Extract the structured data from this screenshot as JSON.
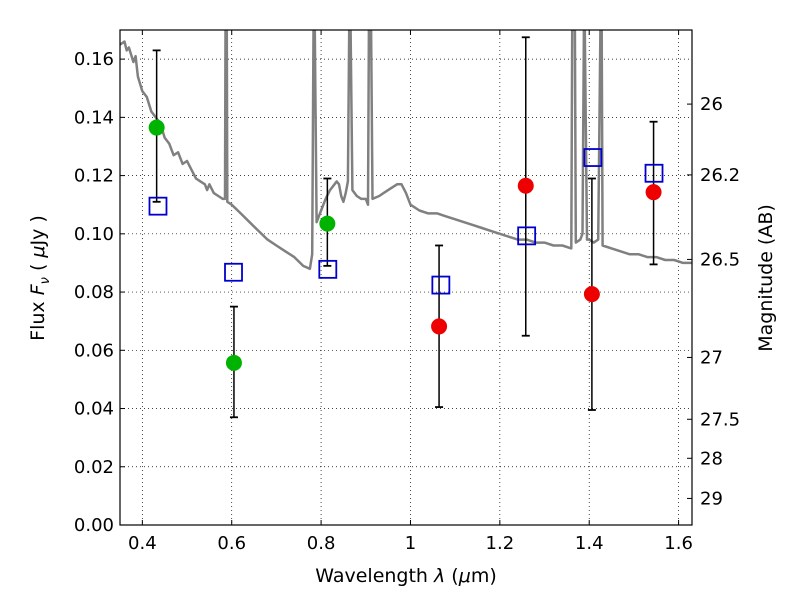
{
  "chart_data": {
    "type": "scatter",
    "xlabel_prefix": "Wavelength ",
    "xlabel_var": "λ",
    "xlabel_unit_open": " (",
    "xlabel_unit_mu": "μ",
    "xlabel_unit_close": "m)",
    "ylabel_prefix": "Flux ",
    "ylabel_var_main": "F",
    "ylabel_var_sub": "ν",
    "ylabel_unit_open": " ( ",
    "ylabel_unit_mu": "μ",
    "ylabel_unit_close": "Jy )",
    "y2label": "Magnitude (AB)",
    "xlim": [
      0.35,
      1.63
    ],
    "ylim": [
      0.0,
      0.17
    ],
    "grid": true,
    "grid_style": "dotted",
    "x_ticks": [
      {
        "value": 0.4,
        "label": "0.4"
      },
      {
        "value": 0.6,
        "label": "0.6"
      },
      {
        "value": 0.8,
        "label": "0.8"
      },
      {
        "value": 1.0,
        "label": "1"
      },
      {
        "value": 1.2,
        "label": "1.2"
      },
      {
        "value": 1.4,
        "label": "1.4"
      },
      {
        "value": 1.6,
        "label": "1.6"
      }
    ],
    "y_ticks": [
      {
        "value": 0.0,
        "label": "0.00"
      },
      {
        "value": 0.02,
        "label": "0.02"
      },
      {
        "value": 0.04,
        "label": "0.04"
      },
      {
        "value": 0.06,
        "label": "0.06"
      },
      {
        "value": 0.08,
        "label": "0.08"
      },
      {
        "value": 0.1,
        "label": "0.10"
      },
      {
        "value": 0.12,
        "label": "0.12"
      },
      {
        "value": 0.14,
        "label": "0.14"
      },
      {
        "value": 0.16,
        "label": "0.16"
      }
    ],
    "mag_ticks": [
      {
        "label": "26",
        "mag": 26.0
      },
      {
        "label": "26.2",
        "mag": 26.2
      },
      {
        "label": "26.5",
        "mag": 26.5
      },
      {
        "label": "27",
        "mag": 27.0
      },
      {
        "label": "27.5",
        "mag": 27.5
      },
      {
        "label": "28",
        "mag": 28.0
      },
      {
        "label": "29",
        "mag": 29.0
      }
    ],
    "colors": {
      "green": "#00b300",
      "red": "#ee0000",
      "square": "#0000cc",
      "sed": "#808080",
      "errorbar": "#000000"
    },
    "observed_green": [
      {
        "x": 0.432,
        "y": 0.1365,
        "ylo": 0.111,
        "yhi": 0.163
      },
      {
        "x": 0.605,
        "y": 0.0557,
        "ylo": 0.037,
        "yhi": 0.075
      },
      {
        "x": 0.814,
        "y": 0.1035,
        "ylo": 0.089,
        "yhi": 0.119
      }
    ],
    "observed_red": [
      {
        "x": 1.064,
        "y": 0.0682,
        "ylo": 0.0405,
        "yhi": 0.096
      },
      {
        "x": 1.258,
        "y": 0.1165,
        "ylo": 0.065,
        "yhi": 0.1675
      },
      {
        "x": 1.406,
        "y": 0.0793,
        "ylo": 0.0395,
        "yhi": 0.119
      },
      {
        "x": 1.544,
        "y": 0.1143,
        "ylo": 0.0895,
        "yhi": 0.1385
      }
    ],
    "model_points": [
      {
        "x": 0.435,
        "y": 0.1095
      },
      {
        "x": 0.604,
        "y": 0.0868
      },
      {
        "x": 0.815,
        "y": 0.0878
      },
      {
        "x": 1.068,
        "y": 0.0824
      },
      {
        "x": 1.26,
        "y": 0.0993
      },
      {
        "x": 1.408,
        "y": 0.1262
      },
      {
        "x": 1.545,
        "y": 0.1208
      }
    ],
    "sed_curve": [
      [
        0.35,
        0.165
      ],
      [
        0.36,
        0.166
      ],
      [
        0.365,
        0.163
      ],
      [
        0.37,
        0.164
      ],
      [
        0.38,
        0.159
      ],
      [
        0.385,
        0.161
      ],
      [
        0.39,
        0.154
      ],
      [
        0.4,
        0.149
      ],
      [
        0.41,
        0.147
      ],
      [
        0.42,
        0.142
      ],
      [
        0.43,
        0.14
      ],
      [
        0.44,
        0.138
      ],
      [
        0.45,
        0.133
      ],
      [
        0.46,
        0.131
      ],
      [
        0.47,
        0.127
      ],
      [
        0.48,
        0.128
      ],
      [
        0.49,
        0.124
      ],
      [
        0.5,
        0.125
      ],
      [
        0.51,
        0.122
      ],
      [
        0.52,
        0.119
      ],
      [
        0.53,
        0.118
      ],
      [
        0.54,
        0.117
      ],
      [
        0.545,
        0.115
      ],
      [
        0.55,
        0.117
      ],
      [
        0.56,
        0.114
      ],
      [
        0.57,
        0.113
      ],
      [
        0.58,
        0.112
      ],
      [
        0.585,
        0.112
      ],
      [
        0.586,
        0.17
      ],
      [
        0.589,
        0.17
      ],
      [
        0.59,
        0.111
      ],
      [
        0.6,
        0.11
      ],
      [
        0.62,
        0.107
      ],
      [
        0.64,
        0.104
      ],
      [
        0.66,
        0.101
      ],
      [
        0.68,
        0.098
      ],
      [
        0.7,
        0.096
      ],
      [
        0.72,
        0.094
      ],
      [
        0.74,
        0.092
      ],
      [
        0.76,
        0.089
      ],
      [
        0.775,
        0.088
      ],
      [
        0.78,
        0.093
      ],
      [
        0.783,
        0.17
      ],
      [
        0.786,
        0.17
      ],
      [
        0.79,
        0.104
      ],
      [
        0.8,
        0.108
      ],
      [
        0.81,
        0.112
      ],
      [
        0.82,
        0.115
      ],
      [
        0.83,
        0.117
      ],
      [
        0.835,
        0.118
      ],
      [
        0.84,
        0.117
      ],
      [
        0.845,
        0.113
      ],
      [
        0.85,
        0.111
      ],
      [
        0.855,
        0.114
      ],
      [
        0.86,
        0.118
      ],
      [
        0.863,
        0.17
      ],
      [
        0.866,
        0.17
      ],
      [
        0.87,
        0.115
      ],
      [
        0.88,
        0.113
      ],
      [
        0.89,
        0.112
      ],
      [
        0.9,
        0.112
      ],
      [
        0.905,
        0.11
      ],
      [
        0.907,
        0.17
      ],
      [
        0.912,
        0.17
      ],
      [
        0.915,
        0.112
      ],
      [
        0.93,
        0.113
      ],
      [
        0.95,
        0.115
      ],
      [
        0.97,
        0.117
      ],
      [
        0.98,
        0.117
      ],
      [
        0.99,
        0.114
      ],
      [
        1.0,
        0.11
      ],
      [
        1.02,
        0.108
      ],
      [
        1.04,
        0.107
      ],
      [
        1.06,
        0.107
      ],
      [
        1.08,
        0.106
      ],
      [
        1.1,
        0.105
      ],
      [
        1.12,
        0.104
      ],
      [
        1.14,
        0.103
      ],
      [
        1.16,
        0.102
      ],
      [
        1.18,
        0.101
      ],
      [
        1.2,
        0.1
      ],
      [
        1.22,
        0.099
      ],
      [
        1.24,
        0.098
      ],
      [
        1.26,
        0.098
      ],
      [
        1.28,
        0.097
      ],
      [
        1.3,
        0.097
      ],
      [
        1.32,
        0.096
      ],
      [
        1.34,
        0.096
      ],
      [
        1.36,
        0.095
      ],
      [
        1.362,
        0.17
      ],
      [
        1.368,
        0.17
      ],
      [
        1.37,
        0.097
      ],
      [
        1.38,
        0.098
      ],
      [
        1.385,
        0.1
      ],
      [
        1.388,
        0.17
      ],
      [
        1.39,
        0.17
      ],
      [
        1.395,
        0.098
      ],
      [
        1.4,
        0.098
      ],
      [
        1.41,
        0.097
      ],
      [
        1.42,
        0.098
      ],
      [
        1.425,
        0.17
      ],
      [
        1.428,
        0.17
      ],
      [
        1.43,
        0.096
      ],
      [
        1.45,
        0.095
      ],
      [
        1.47,
        0.094
      ],
      [
        1.49,
        0.093
      ],
      [
        1.51,
        0.093
      ],
      [
        1.53,
        0.092
      ],
      [
        1.55,
        0.092
      ],
      [
        1.57,
        0.091
      ],
      [
        1.59,
        0.091
      ],
      [
        1.61,
        0.09
      ],
      [
        1.63,
        0.09
      ]
    ]
  }
}
